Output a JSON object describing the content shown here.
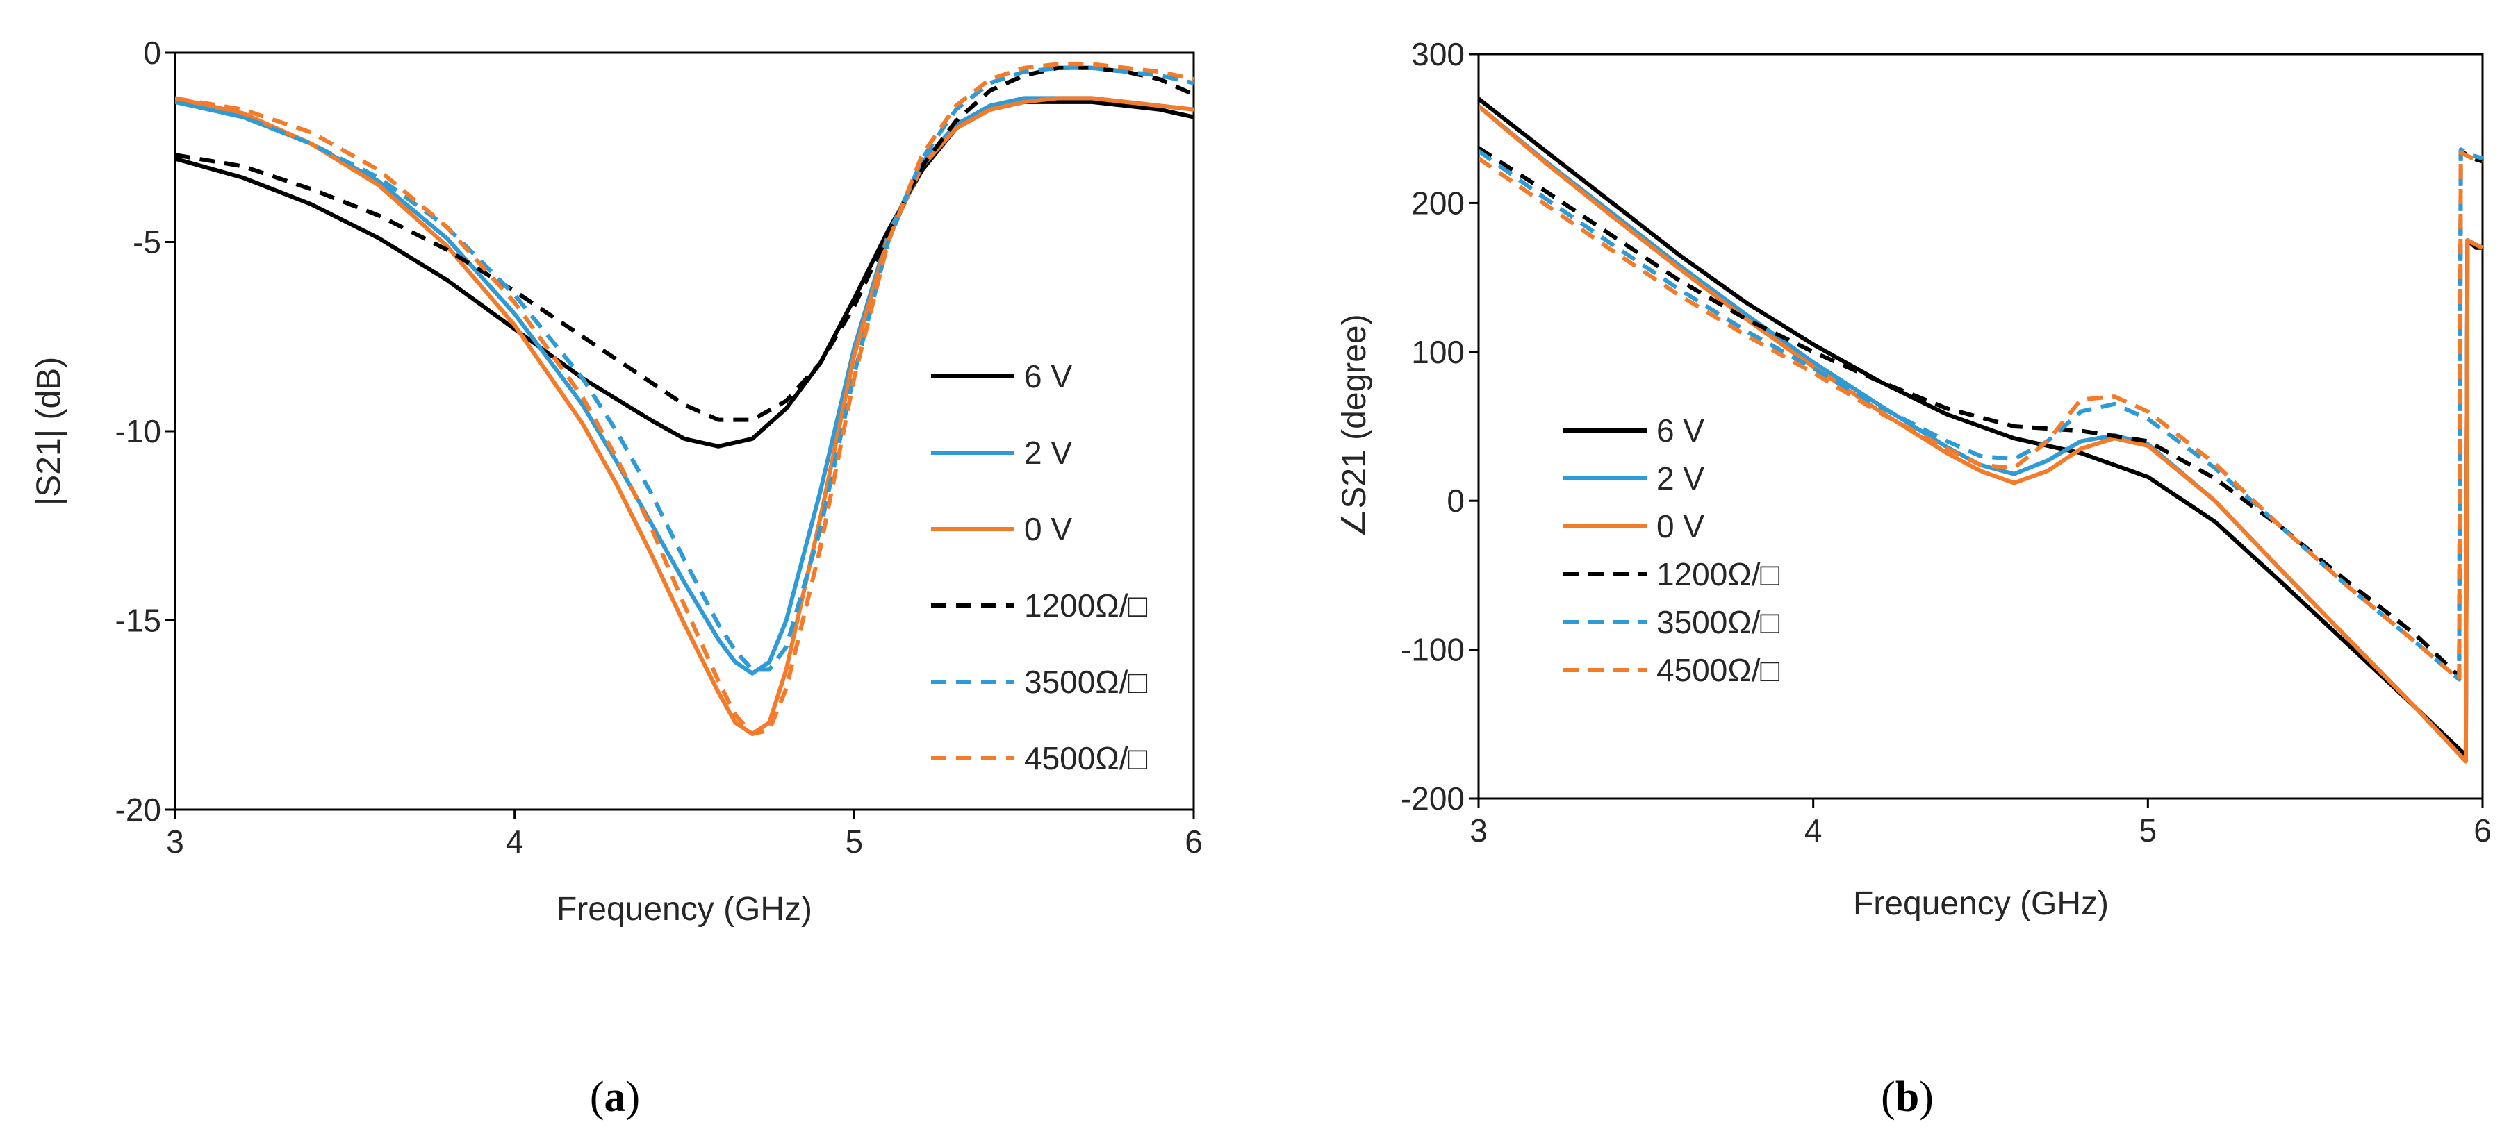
{
  "colors": {
    "black": "#000000",
    "blue": "#2e9bd6",
    "orange": "#f47b2a",
    "axis": "#000000"
  },
  "chart_data": [
    {
      "type": "line",
      "panel_label": "a",
      "xlabel": "Frequency (GHz)",
      "ylabel": "|S21|  (dB)",
      "xlim": [
        3,
        6
      ],
      "ylim": [
        -20,
        0
      ],
      "xticks": [
        "3",
        "4",
        "5",
        "6"
      ],
      "yticks": [
        "0",
        "-5",
        "-10",
        "-15",
        "-20"
      ],
      "legend_position": "right-middle",
      "series": [
        {
          "name": "6 V",
          "color": "#000000",
          "dash": "solid",
          "x": [
            3.0,
            3.2,
            3.4,
            3.6,
            3.8,
            4.0,
            4.2,
            4.4,
            4.5,
            4.6,
            4.7,
            4.8,
            4.9,
            5.0,
            5.1,
            5.2,
            5.3,
            5.4,
            5.5,
            5.6,
            5.7,
            5.8,
            5.9,
            6.0
          ],
          "y": [
            -2.8,
            -3.3,
            -4.0,
            -4.9,
            -6.0,
            -7.3,
            -8.6,
            -9.7,
            -10.2,
            -10.4,
            -10.2,
            -9.4,
            -8.2,
            -6.5,
            -4.7,
            -3.1,
            -2.0,
            -1.5,
            -1.3,
            -1.3,
            -1.3,
            -1.4,
            -1.5,
            -1.7
          ]
        },
        {
          "name": "2 V",
          "color": "#2e9bd6",
          "dash": "solid",
          "x": [
            3.0,
            3.2,
            3.4,
            3.6,
            3.8,
            4.0,
            4.2,
            4.3,
            4.4,
            4.5,
            4.6,
            4.65,
            4.7,
            4.75,
            4.8,
            4.9,
            5.0,
            5.1,
            5.2,
            5.3,
            5.4,
            5.5,
            5.6,
            5.7,
            5.8,
            5.9,
            6.0
          ],
          "y": [
            -1.3,
            -1.7,
            -2.4,
            -3.4,
            -4.9,
            -6.9,
            -9.3,
            -10.8,
            -12.4,
            -14.0,
            -15.5,
            -16.1,
            -16.4,
            -16.1,
            -15.0,
            -11.6,
            -7.8,
            -4.8,
            -2.9,
            -1.9,
            -1.4,
            -1.2,
            -1.2,
            -1.2,
            -1.3,
            -1.4,
            -1.5
          ]
        },
        {
          "name": "0 V",
          "color": "#f47b2a",
          "dash": "solid",
          "x": [
            3.0,
            3.2,
            3.4,
            3.6,
            3.8,
            4.0,
            4.2,
            4.3,
            4.4,
            4.5,
            4.6,
            4.65,
            4.7,
            4.75,
            4.8,
            4.9,
            5.0,
            5.1,
            5.2,
            5.3,
            5.4,
            5.5,
            5.6,
            5.7,
            5.8,
            5.9,
            6.0
          ],
          "y": [
            -1.2,
            -1.6,
            -2.4,
            -3.5,
            -5.1,
            -7.2,
            -9.8,
            -11.4,
            -13.2,
            -15.1,
            -16.9,
            -17.7,
            -18.0,
            -17.7,
            -16.3,
            -12.3,
            -8.0,
            -4.9,
            -3.0,
            -2.0,
            -1.5,
            -1.3,
            -1.2,
            -1.2,
            -1.3,
            -1.4,
            -1.5
          ]
        },
        {
          "name": "1200Ω/□",
          "color": "#000000",
          "dash": "dashed",
          "x": [
            3.0,
            3.2,
            3.4,
            3.6,
            3.8,
            4.0,
            4.2,
            4.4,
            4.5,
            4.6,
            4.7,
            4.8,
            4.9,
            5.0,
            5.1,
            5.2,
            5.3,
            5.4,
            5.5,
            5.6,
            5.7,
            5.8,
            5.9,
            6.0
          ],
          "y": [
            -2.7,
            -3.0,
            -3.6,
            -4.3,
            -5.2,
            -6.3,
            -7.5,
            -8.7,
            -9.3,
            -9.7,
            -9.7,
            -9.2,
            -8.2,
            -6.7,
            -4.8,
            -3.0,
            -1.8,
            -1.0,
            -0.6,
            -0.4,
            -0.4,
            -0.5,
            -0.7,
            -1.1
          ]
        },
        {
          "name": "3500Ω/□",
          "color": "#2e9bd6",
          "dash": "dashed",
          "x": [
            3.0,
            3.2,
            3.4,
            3.6,
            3.8,
            4.0,
            4.2,
            4.3,
            4.4,
            4.5,
            4.6,
            4.65,
            4.7,
            4.75,
            4.8,
            4.9,
            5.0,
            5.1,
            5.2,
            5.3,
            5.4,
            5.5,
            5.6,
            5.7,
            5.8,
            5.9,
            6.0
          ],
          "y": [
            -1.3,
            -1.7,
            -2.4,
            -3.3,
            -4.6,
            -6.4,
            -8.6,
            -10.0,
            -11.6,
            -13.4,
            -15.1,
            -15.8,
            -16.3,
            -16.3,
            -15.7,
            -12.6,
            -8.5,
            -5.0,
            -2.8,
            -1.5,
            -0.8,
            -0.5,
            -0.4,
            -0.4,
            -0.5,
            -0.6,
            -0.8
          ]
        },
        {
          "name": "4500Ω/□",
          "color": "#f47b2a",
          "dash": "dashed",
          "x": [
            3.0,
            3.2,
            3.4,
            3.6,
            3.8,
            4.0,
            4.2,
            4.3,
            4.4,
            4.5,
            4.6,
            4.65,
            4.7,
            4.75,
            4.8,
            4.9,
            5.0,
            5.1,
            5.2,
            5.3,
            5.4,
            5.5,
            5.6,
            5.7,
            5.8,
            5.9,
            6.0
          ],
          "y": [
            -1.2,
            -1.5,
            -2.1,
            -3.1,
            -4.6,
            -6.6,
            -9.1,
            -10.7,
            -12.5,
            -14.6,
            -16.6,
            -17.5,
            -18.0,
            -17.9,
            -16.8,
            -13.1,
            -8.6,
            -5.0,
            -2.7,
            -1.4,
            -0.7,
            -0.4,
            -0.3,
            -0.3,
            -0.4,
            -0.5,
            -0.7
          ]
        }
      ]
    },
    {
      "type": "line",
      "panel_label": "b",
      "xlabel": "Frequency (GHz)",
      "ylabel": "∠S21 (degree)",
      "xlim": [
        3,
        6
      ],
      "ylim": [
        -200,
        300
      ],
      "xticks": [
        "3",
        "4",
        "5",
        "6"
      ],
      "yticks": [
        "300",
        "200",
        "100",
        "0",
        "-100",
        "-200"
      ],
      "legend_position": "left-middle",
      "series": [
        {
          "name": "6 V",
          "color": "#000000",
          "dash": "solid",
          "x": [
            3.0,
            3.2,
            3.4,
            3.6,
            3.8,
            4.0,
            4.2,
            4.4,
            4.6,
            4.8,
            5.0,
            5.2,
            5.4,
            5.6,
            5.8,
            5.95,
            5.955,
            5.98,
            6.0
          ],
          "y": [
            270,
            235,
            200,
            165,
            133,
            105,
            80,
            58,
            42,
            32,
            16,
            -14,
            -55,
            -97,
            -139,
            -171,
            175,
            170,
            170
          ]
        },
        {
          "name": "2 V",
          "color": "#2e9bd6",
          "dash": "solid",
          "x": [
            3.0,
            3.2,
            3.4,
            3.6,
            3.8,
            4.0,
            4.2,
            4.4,
            4.5,
            4.6,
            4.7,
            4.8,
            4.9,
            5.0,
            5.2,
            5.4,
            5.6,
            5.8,
            5.95,
            5.955,
            5.98,
            6.0
          ],
          "y": [
            265,
            228,
            193,
            158,
            125,
            93,
            64,
            36,
            24,
            18,
            27,
            40,
            44,
            38,
            0,
            -47,
            -93,
            -139,
            -175,
            175,
            172,
            170
          ]
        },
        {
          "name": "0 V",
          "color": "#f47b2a",
          "dash": "solid",
          "x": [
            3.0,
            3.2,
            3.4,
            3.6,
            3.8,
            4.0,
            4.2,
            4.4,
            4.5,
            4.6,
            4.7,
            4.8,
            4.9,
            5.0,
            5.2,
            5.4,
            5.6,
            5.8,
            5.95,
            5.955,
            5.98,
            6.0
          ],
          "y": [
            265,
            227,
            191,
            156,
            122,
            90,
            60,
            32,
            20,
            12,
            20,
            35,
            42,
            37,
            0,
            -47,
            -93,
            -139,
            -175,
            175,
            172,
            170
          ]
        },
        {
          "name": "1200Ω/□",
          "color": "#000000",
          "dash": "dashed",
          "x": [
            3.0,
            3.2,
            3.4,
            3.6,
            3.8,
            4.0,
            4.2,
            4.4,
            4.6,
            4.8,
            5.0,
            5.2,
            5.4,
            5.6,
            5.8,
            5.93,
            5.935,
            5.97,
            6.0
          ],
          "y": [
            237,
            208,
            178,
            148,
            122,
            100,
            80,
            62,
            50,
            47,
            40,
            15,
            -18,
            -55,
            -90,
            -118,
            235,
            230,
            228
          ]
        },
        {
          "name": "3500Ω/□",
          "color": "#2e9bd6",
          "dash": "dashed",
          "x": [
            3.0,
            3.2,
            3.4,
            3.6,
            3.8,
            4.0,
            4.2,
            4.4,
            4.5,
            4.6,
            4.7,
            4.8,
            4.9,
            5.0,
            5.2,
            5.4,
            5.6,
            5.8,
            5.93,
            5.935,
            5.97,
            6.0
          ],
          "y": [
            235,
            203,
            172,
            142,
            114,
            89,
            63,
            40,
            30,
            28,
            40,
            60,
            65,
            55,
            22,
            -18,
            -58,
            -95,
            -120,
            236,
            232,
            230
          ]
        },
        {
          "name": "4500Ω/□",
          "color": "#f47b2a",
          "dash": "dashed",
          "x": [
            3.0,
            3.2,
            3.4,
            3.6,
            3.8,
            4.0,
            4.2,
            4.4,
            4.5,
            4.6,
            4.7,
            4.8,
            4.9,
            5.0,
            5.2,
            5.4,
            5.6,
            5.8,
            5.93,
            5.935,
            5.97,
            6.0
          ],
          "y": [
            230,
            199,
            168,
            138,
            111,
            86,
            59,
            35,
            24,
            22,
            40,
            68,
            70,
            60,
            25,
            -18,
            -58,
            -95,
            -120,
            234,
            230,
            228
          ]
        }
      ]
    }
  ]
}
